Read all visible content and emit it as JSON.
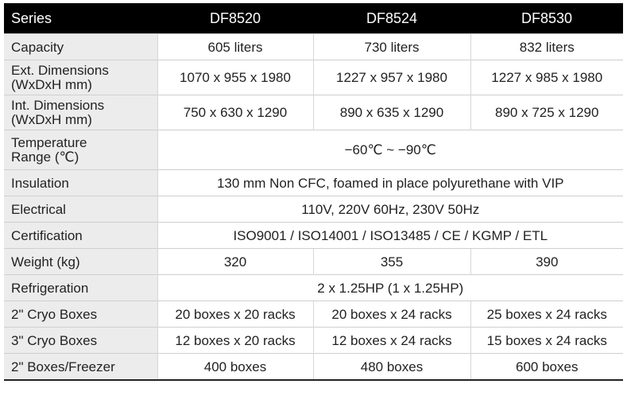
{
  "headers": [
    "Series",
    "DF8520",
    "DF8524",
    "DF8530"
  ],
  "rows": [
    {
      "label": "Capacity",
      "cells": [
        "605 liters",
        "730 liters",
        "832 liters"
      ]
    },
    {
      "label": "Ext. Dimensions\n(WxDxH mm)",
      "cells": [
        "1070 x 955 x 1980",
        "1227 x 957 x 1980",
        "1227 x 985 x 1980"
      ]
    },
    {
      "label": "Int. Dimensions\n(WxDxH mm)",
      "cells": [
        "750 x 630 x 1290",
        "890 x 635 x 1290",
        "890 x 725 x 1290"
      ]
    },
    {
      "label": "Temperature\nRange (℃)",
      "span": "−60℃ ~ −90℃"
    },
    {
      "label": "Insulation",
      "span": "130 mm Non CFC, foamed in place polyurethane with VIP"
    },
    {
      "label": "Electrical",
      "span": "110V, 220V 60Hz, 230V 50Hz"
    },
    {
      "label": "Certification",
      "span": "ISO9001 / ISO14001 / ISO13485 / CE / KGMP / ETL"
    },
    {
      "label": "Weight (kg)",
      "cells": [
        "320",
        "355",
        "390"
      ]
    },
    {
      "label": "Refrigeration",
      "span": "2 x 1.25HP (1 x 1.25HP)"
    },
    {
      "label": "2\" Cryo Boxes",
      "cells": [
        "20 boxes x 20 racks",
        "20 boxes x 24 racks",
        "25 boxes x 24 racks"
      ]
    },
    {
      "label": "3\" Cryo Boxes",
      "cells": [
        "12 boxes x 20 racks",
        "12 boxes x 24 racks",
        "15 boxes x 24 racks"
      ]
    },
    {
      "label": "2\" Boxes/Freezer",
      "cells": [
        "400 boxes",
        "480 boxes",
        "600 boxes"
      ]
    }
  ]
}
